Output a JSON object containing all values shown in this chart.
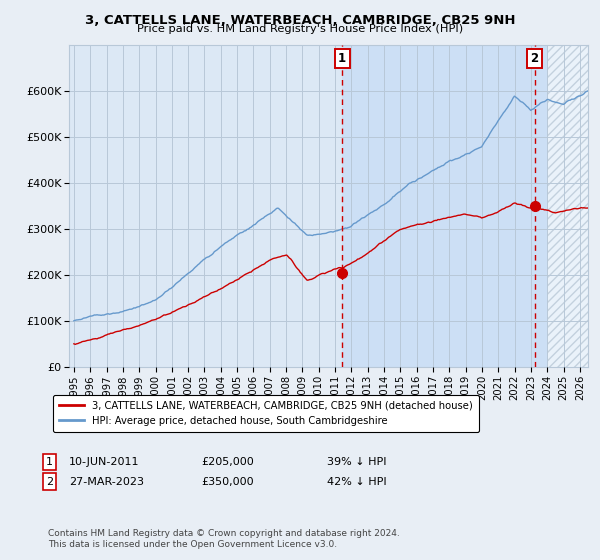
{
  "title": "3, CATTELLS LANE, WATERBEACH, CAMBRIDGE, CB25 9NH",
  "subtitle": "Price paid vs. HM Land Registry's House Price Index (HPI)",
  "background_color": "#e8eef5",
  "plot_bg_color": "#dce8f5",
  "shaded_bg_color": "#ccdff5",
  "hatch_color": "#aabbcc",
  "ylim": [
    0,
    700000
  ],
  "yticks": [
    0,
    100000,
    200000,
    300000,
    400000,
    500000,
    600000
  ],
  "ytick_labels": [
    "£0",
    "£100K",
    "£200K",
    "£300K",
    "£400K",
    "£500K",
    "£600K"
  ],
  "sale1_date_x": 2011.44,
  "sale1_price": 205000,
  "sale2_date_x": 2023.23,
  "sale2_price": 350000,
  "legend_label_red": "3, CATTELLS LANE, WATERBEACH, CAMBRIDGE, CB25 9NH (detached house)",
  "legend_label_blue": "HPI: Average price, detached house, South Cambridgeshire",
  "annotation1": "1",
  "annotation2": "2",
  "note1_num": "1",
  "note1_date": "10-JUN-2011",
  "note1_price": "£205,000",
  "note1_pct": "39% ↓ HPI",
  "note2_num": "2",
  "note2_date": "27-MAR-2023",
  "note2_price": "£350,000",
  "note2_pct": "42% ↓ HPI",
  "footer": "Contains HM Land Registry data © Crown copyright and database right 2024.\nThis data is licensed under the Open Government Licence v3.0.",
  "red_color": "#cc0000",
  "blue_color": "#6699cc",
  "grid_color": "#b8c8d8",
  "xmin": 1995.0,
  "xmax": 2026.5
}
